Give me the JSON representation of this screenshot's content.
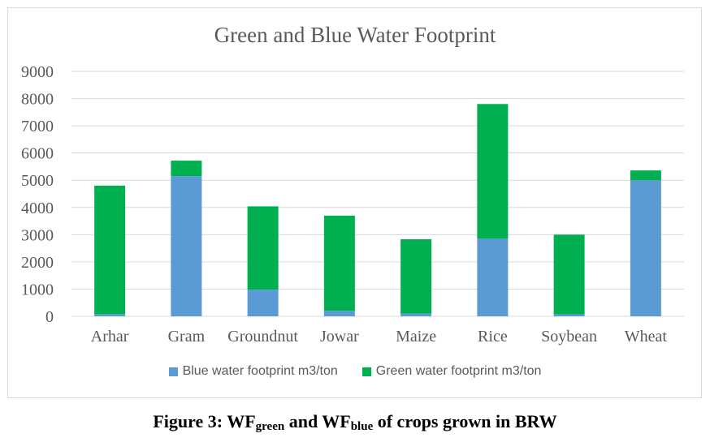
{
  "chart_data": {
    "type": "bar",
    "stacked": true,
    "title": "Green and Blue Water Footprint",
    "categories": [
      "Arhar",
      "Gram",
      "Groundnut",
      "Jowar",
      "Maize",
      "Rice",
      "Soybean",
      "Wheat"
    ],
    "series": [
      {
        "name": "Blue water footprint m3/ton",
        "color": "#5b9bd5",
        "values": [
          80,
          5150,
          980,
          200,
          100,
          2850,
          70,
          5000
        ]
      },
      {
        "name": "Green water footprint m3/ton",
        "color": "#00b050",
        "values": [
          4720,
          570,
          3060,
          3500,
          2730,
          4950,
          2930,
          360
        ]
      }
    ],
    "ylim": [
      0,
      9000
    ],
    "yticks": [
      0,
      1000,
      2000,
      3000,
      4000,
      5000,
      6000,
      7000,
      8000,
      9000
    ],
    "grid": true,
    "legend_position": "bottom",
    "xlabel": "",
    "ylabel": ""
  },
  "caption": {
    "prefix": "Figure 3: WF",
    "sub1": "green",
    "middle": " and WF",
    "sub2": "blue",
    "suffix": " of crops grown in BRW"
  }
}
